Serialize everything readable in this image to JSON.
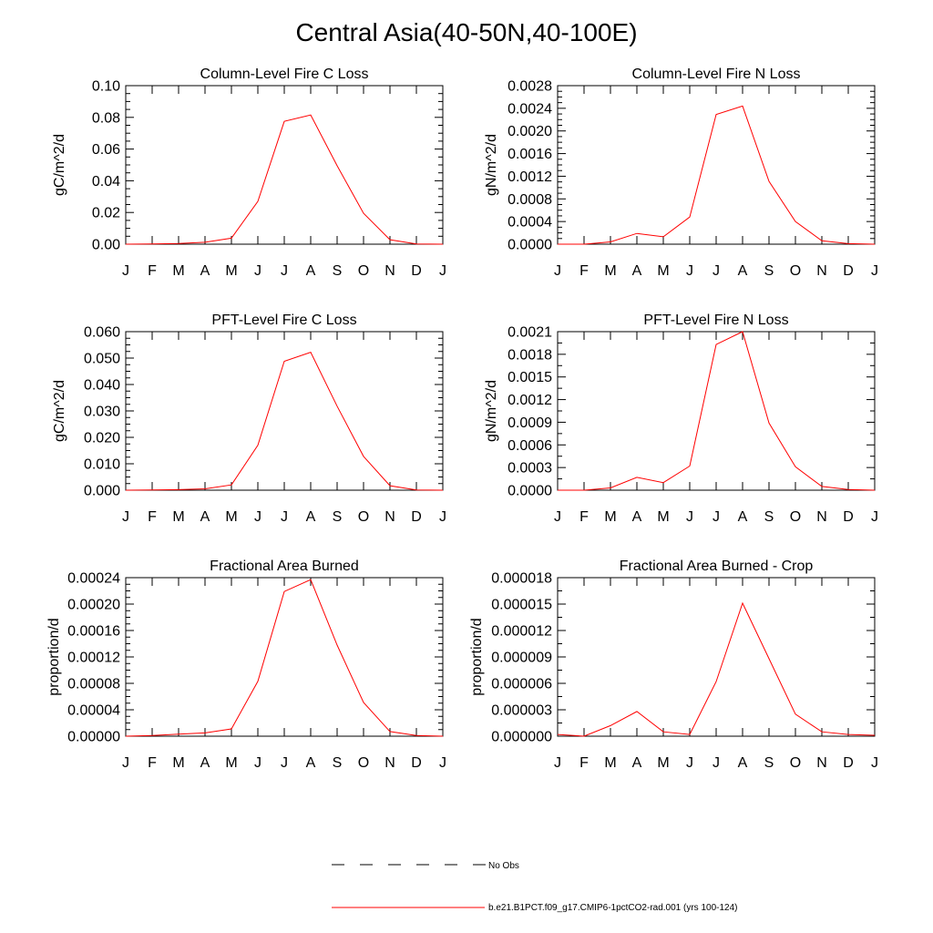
{
  "title": "Central Asia(40-50N,40-100E)",
  "months": [
    "J",
    "F",
    "M",
    "A",
    "M",
    "J",
    "J",
    "A",
    "S",
    "O",
    "N",
    "D",
    "J"
  ],
  "line_color": "#ff0000",
  "chart_data": [
    {
      "type": "line",
      "title": "Column-Level Fire C Loss",
      "ylabel": "gC/m^2/d",
      "xlabel": "",
      "ylim": [
        0,
        0.1
      ],
      "yticks": [
        "0.00",
        "0.02",
        "0.04",
        "0.06",
        "0.08",
        "0.10"
      ],
      "yminor_per_major": 4,
      "values": [
        0.0,
        0.0001,
        0.0004,
        0.0012,
        0.0038,
        0.027,
        0.0775,
        0.0815,
        0.0495,
        0.0195,
        0.0028,
        0.0002,
        0.0
      ]
    },
    {
      "type": "line",
      "title": "Column-Level Fire N Loss",
      "ylabel": "gN/m^2/d",
      "xlabel": "",
      "ylim": [
        0,
        0.0028
      ],
      "yticks": [
        "0.0000",
        "0.0004",
        "0.0008",
        "0.0012",
        "0.0016",
        "0.0020",
        "0.0024",
        "0.0028"
      ],
      "yminor_per_major": 4,
      "values": [
        0.0,
        0.0,
        4e-05,
        0.00019,
        0.00013,
        0.00048,
        0.00229,
        0.00244,
        0.00111,
        0.0004,
        6e-05,
        1e-05,
        0.0
      ]
    },
    {
      "type": "line",
      "title": "PFT-Level Fire C Loss",
      "ylabel": "gC/m^2/d",
      "xlabel": "",
      "ylim": [
        0,
        0.06
      ],
      "yticks": [
        "0.000",
        "0.010",
        "0.020",
        "0.030",
        "0.040",
        "0.050",
        "0.060"
      ],
      "yminor_per_major": 4,
      "values": [
        0.0,
        0.0001,
        0.0002,
        0.0005,
        0.002,
        0.017,
        0.0488,
        0.0522,
        0.0318,
        0.0128,
        0.0017,
        0.0001,
        0.0
      ]
    },
    {
      "type": "line",
      "title": "PFT-Level Fire N Loss",
      "ylabel": "gN/m^2/d",
      "xlabel": "",
      "ylim": [
        0,
        0.0021
      ],
      "yticks": [
        "0.0000",
        "0.0003",
        "0.0006",
        "0.0009",
        "0.0012",
        "0.0015",
        "0.0018",
        "0.0021"
      ],
      "yminor_per_major": 2,
      "values": [
        0.0,
        0.0,
        3e-05,
        0.00017,
        0.0001,
        0.00032,
        0.00193,
        0.0021,
        0.00089,
        0.00031,
        5e-05,
        1e-05,
        0.0
      ]
    },
    {
      "type": "line",
      "title": "Fractional Area Burned",
      "ylabel": "proportion/d",
      "xlabel": "",
      "ylim": [
        0,
        0.00024
      ],
      "yticks": [
        "0.00000",
        "0.00004",
        "0.00008",
        "0.00012",
        "0.00016",
        "0.00020",
        "0.00024"
      ],
      "yminor_per_major": 4,
      "values": [
        0.0,
        1e-06,
        3e-06,
        5e-06,
        1.1e-05,
        8.3e-05,
        0.000219,
        0.000237,
        0.000138,
        5.1e-05,
        7e-06,
        1e-06,
        0.0
      ]
    },
    {
      "type": "line",
      "title": "Fractional Area Burned - Crop",
      "ylabel": "proportion/d",
      "xlabel": "",
      "ylim": [
        0,
        1.8e-05
      ],
      "yticks": [
        "0.000000",
        "0.000003",
        "0.000006",
        "0.000009",
        "0.000012",
        "0.000015",
        "0.000018"
      ],
      "yminor_per_major": 2,
      "values": [
        2e-07,
        0.0,
        1.2e-06,
        2.8e-06,
        5e-07,
        2e-07,
        6.2e-06,
        1.51e-05,
        8.8e-06,
        2.5e-06,
        5e-07,
        2e-07,
        1e-07
      ]
    }
  ],
  "legend": [
    {
      "label": "No Obs",
      "style": "dashed",
      "color": "#000000"
    },
    {
      "label": "b.e21.B1PCT.f09_g17.CMIP6-1pctCO2-rad.001 (yrs 100-124)",
      "style": "solid",
      "color": "#ff0000"
    }
  ]
}
